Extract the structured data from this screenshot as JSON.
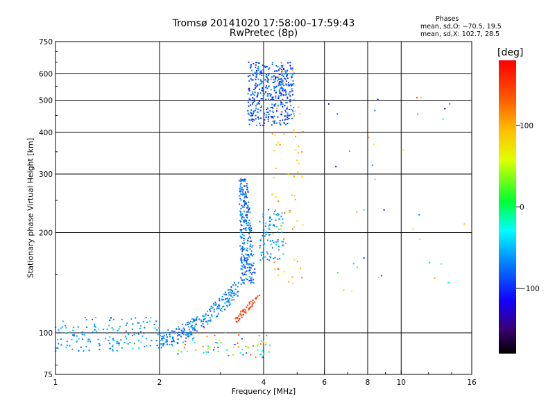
{
  "title_line1": "Tromsø 20141020 17:58:00–17:59:43",
  "title_line2": "RwPretec (8p)",
  "stats": {
    "heading": "Phases",
    "o_line": "mean, sd,O: −70.5, 19.5",
    "x_line": "mean, sd,X: 102.7, 28.5"
  },
  "colorbar": {
    "unit_label": "[deg]",
    "ticks": [
      {
        "value": 100,
        "label": "100"
      },
      {
        "value": 0,
        "label": "0"
      },
      {
        "value": -100,
        "label": "−100"
      }
    ],
    "range": [
      -180,
      180
    ]
  },
  "chart_data": {
    "type": "scatter",
    "title": "Tromsø 20141020 17:58:00–17:59:43 / RwPretec (8p)",
    "xlabel": "Frequency [MHz]",
    "ylabel": "Stationary phase Virtual Height [km]",
    "xscale": "log",
    "yscale": "log",
    "xlim": [
      1,
      16
    ],
    "ylim": [
      75,
      750
    ],
    "grid": true,
    "xticks": [
      {
        "value": 1,
        "label": "1"
      },
      {
        "value": 2,
        "label": "2"
      },
      {
        "value": 4,
        "label": "4"
      },
      {
        "value": 6,
        "label": "6"
      },
      {
        "value": 8,
        "label": "8"
      },
      {
        "value": 10,
        "label": "10"
      },
      {
        "value": 16,
        "label": "16"
      }
    ],
    "xgrid": [
      2,
      4,
      6,
      8,
      10
    ],
    "yticks": [
      {
        "value": 75,
        "label": "75"
      },
      {
        "value": 100,
        "label": "100"
      },
      {
        "value": 200,
        "label": "200"
      },
      {
        "value": 300,
        "label": "300"
      },
      {
        "value": 400,
        "label": "400"
      },
      {
        "value": 500,
        "label": "500"
      },
      {
        "value": 600,
        "label": "600"
      },
      {
        "value": 750,
        "label": "750"
      }
    ],
    "ygrid": [
      100,
      200,
      300,
      400,
      500,
      600
    ],
    "color_scale": "phase [deg]",
    "clusters": [
      {
        "name": "E-layer trace",
        "x_range": [
          1.0,
          2.0
        ],
        "h_range": [
          88,
          112
        ],
        "phase_range": [
          -80,
          -40
        ],
        "count": 150
      },
      {
        "name": "F1 rising trace",
        "x_range": [
          2.0,
          3.4
        ],
        "h_range": [
          95,
          138
        ],
        "phase_range": [
          -95,
          -50
        ],
        "count": 240
      },
      {
        "name": "F1 cusp",
        "x_range": [
          3.3,
          3.8
        ],
        "h_range": [
          140,
          290
        ],
        "phase_range": [
          -100,
          -55
        ],
        "count": 260
      },
      {
        "name": "F1-F2 transition",
        "x_range": [
          3.9,
          4.6
        ],
        "h_range": [
          165,
          235
        ],
        "phase_range": [
          -80,
          -40
        ],
        "count": 90
      },
      {
        "name": "F2 O-trace",
        "x_range": [
          3.6,
          4.9
        ],
        "h_range": [
          420,
          650
        ],
        "phase_range": [
          -110,
          -60
        ],
        "count": 420
      },
      {
        "name": "X-mode trace",
        "x_range": [
          3.3,
          3.9
        ],
        "h_range": [
          108,
          130
        ],
        "phase_range": [
          130,
          170
        ],
        "count": 45
      },
      {
        "name": "Low-height scatter",
        "x_range": [
          2.2,
          4.2
        ],
        "h_range": [
          84,
          100
        ],
        "phase_range": [
          -100,
          140
        ],
        "count": 70
      },
      {
        "name": "Sparse X echoes",
        "x_range": [
          4.2,
          5.2
        ],
        "h_range": [
          140,
          660
        ],
        "phase_range": [
          70,
          130
        ],
        "count": 70
      },
      {
        "name": "Sporadic high-frequency echoes",
        "x_range": [
          6.0,
          15.5
        ],
        "h_range": [
          130,
          600
        ],
        "phase_range": [
          -150,
          140
        ],
        "count": 36
      }
    ]
  }
}
